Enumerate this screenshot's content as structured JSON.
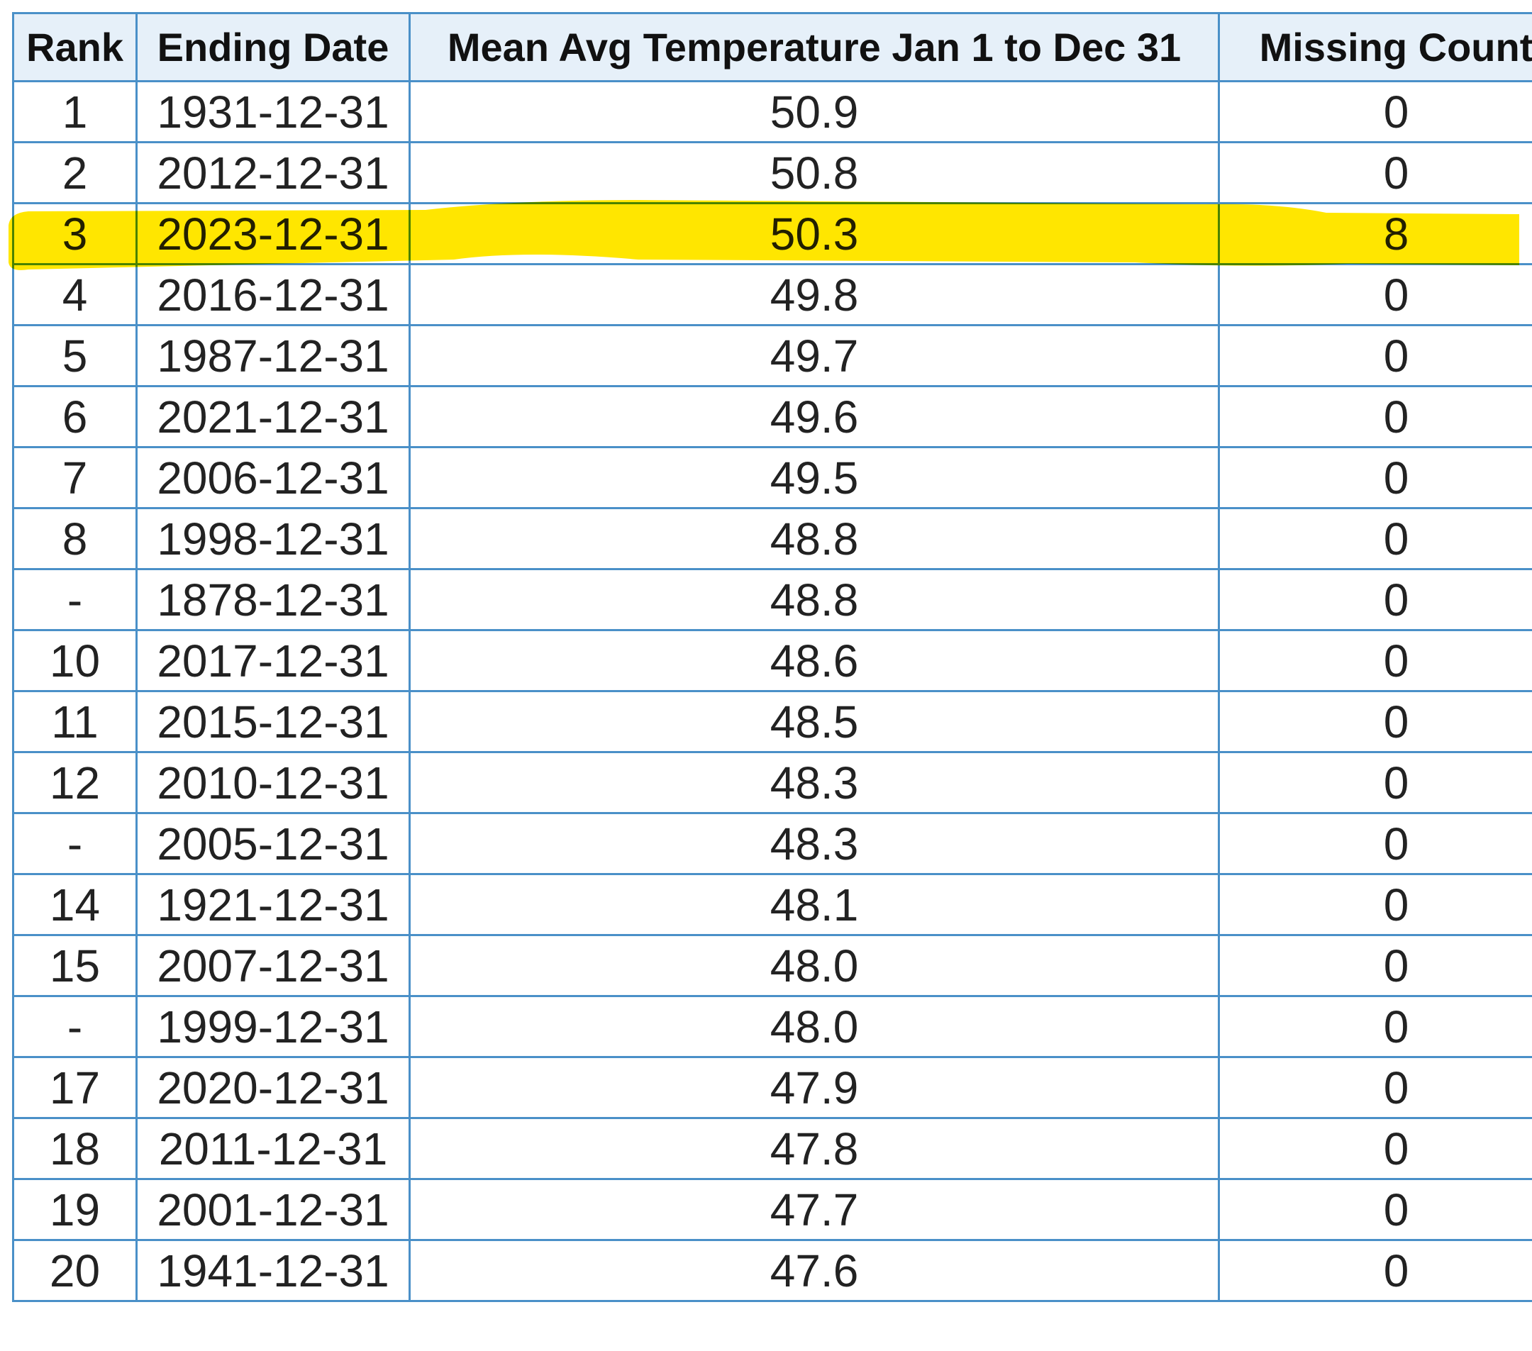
{
  "table": {
    "header": [
      "Rank",
      "Ending Date",
      "Mean Avg Temperature Jan 1 to Dec 31",
      "Missing Count"
    ],
    "rows": [
      [
        "1",
        "1931-12-31",
        "50.9",
        "0"
      ],
      [
        "2",
        "2012-12-31",
        "50.8",
        "0"
      ],
      [
        "3",
        "2023-12-31",
        "50.3",
        "8"
      ],
      [
        "4",
        "2016-12-31",
        "49.8",
        "0"
      ],
      [
        "5",
        "1987-12-31",
        "49.7",
        "0"
      ],
      [
        "6",
        "2021-12-31",
        "49.6",
        "0"
      ],
      [
        "7",
        "2006-12-31",
        "49.5",
        "0"
      ],
      [
        "8",
        "1998-12-31",
        "48.8",
        "0"
      ],
      [
        "-",
        "1878-12-31",
        "48.8",
        "0"
      ],
      [
        "10",
        "2017-12-31",
        "48.6",
        "0"
      ],
      [
        "11",
        "2015-12-31",
        "48.5",
        "0"
      ],
      [
        "12",
        "2010-12-31",
        "48.3",
        "0"
      ],
      [
        "-",
        "2005-12-31",
        "48.3",
        "0"
      ],
      [
        "14",
        "1921-12-31",
        "48.1",
        "0"
      ],
      [
        "15",
        "2007-12-31",
        "48.0",
        "0"
      ],
      [
        "-",
        "1999-12-31",
        "48.0",
        "0"
      ],
      [
        "17",
        "2020-12-31",
        "47.9",
        "0"
      ],
      [
        "18",
        "2011-12-31",
        "47.8",
        "0"
      ],
      [
        "19",
        "2001-12-31",
        "47.7",
        "0"
      ],
      [
        "20",
        "1941-12-31",
        "47.6",
        "0"
      ]
    ]
  }
}
